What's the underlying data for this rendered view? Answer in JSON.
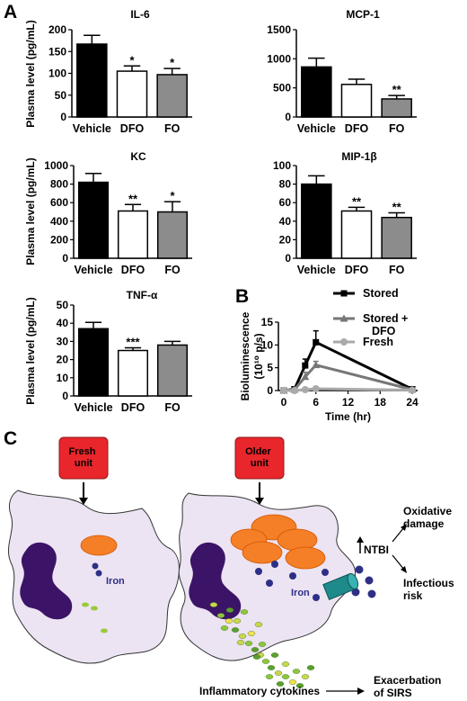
{
  "panel_labels": {
    "a": "A",
    "b": "B",
    "c": "C"
  },
  "chart_data": [
    {
      "id": "il6",
      "type": "bar",
      "title": "IL-6",
      "ylabel": "Plasma level (pg/mL)",
      "categories": [
        "Vehicle",
        "DFO",
        "FO"
      ],
      "values": [
        167,
        105,
        97
      ],
      "errors": [
        20,
        12,
        14
      ],
      "significance": [
        "",
        "*",
        "*"
      ],
      "ylim": [
        0,
        200
      ],
      "yticks": [
        0,
        50,
        100,
        150,
        200
      ],
      "bar_fills": [
        "#000000",
        "#ffffff",
        "#8c8c8c"
      ]
    },
    {
      "id": "mcp1",
      "type": "bar",
      "title": "MCP-1",
      "ylabel": "",
      "categories": [
        "Vehicle",
        "DFO",
        "FO"
      ],
      "values": [
        860,
        560,
        310
      ],
      "errors": [
        150,
        90,
        60
      ],
      "significance": [
        "",
        "",
        "**"
      ],
      "ylim": [
        0,
        1500
      ],
      "yticks": [
        0,
        500,
        1000,
        1500
      ],
      "bar_fills": [
        "#000000",
        "#ffffff",
        "#8c8c8c"
      ]
    },
    {
      "id": "kc",
      "type": "bar",
      "title": "KC",
      "ylabel": "Plasma level (pg/mL)",
      "categories": [
        "Vehicle",
        "DFO",
        "FO"
      ],
      "values": [
        820,
        510,
        500
      ],
      "errors": [
        95,
        70,
        110
      ],
      "significance": [
        "",
        "**",
        "*"
      ],
      "ylim": [
        0,
        1000
      ],
      "yticks": [
        0,
        200,
        400,
        600,
        800,
        1000
      ],
      "bar_fills": [
        "#000000",
        "#ffffff",
        "#8c8c8c"
      ]
    },
    {
      "id": "mip1b",
      "type": "bar",
      "title": "MIP-1β",
      "ylabel": "",
      "categories": [
        "Vehicle",
        "DFO",
        "FO"
      ],
      "values": [
        80,
        51,
        44
      ],
      "errors": [
        9,
        4,
        5
      ],
      "significance": [
        "",
        "**",
        "**"
      ],
      "ylim": [
        0,
        100
      ],
      "yticks": [
        0,
        20,
        40,
        60,
        80,
        100
      ],
      "bar_fills": [
        "#000000",
        "#ffffff",
        "#8c8c8c"
      ]
    },
    {
      "id": "tnfa",
      "type": "bar",
      "title": "TNF-α",
      "ylabel": "Plasma level (pg/mL)",
      "categories": [
        "Vehicle",
        "DFO",
        "FO"
      ],
      "values": [
        37,
        25,
        28
      ],
      "errors": [
        3.5,
        1.5,
        2
      ],
      "significance": [
        "",
        "***",
        ""
      ],
      "ylim": [
        0,
        50
      ],
      "yticks": [
        0,
        10,
        20,
        30,
        40,
        50
      ],
      "bar_fills": [
        "#000000",
        "#ffffff",
        "#8c8c8c"
      ]
    },
    {
      "id": "biolum",
      "type": "line",
      "title": "",
      "xlabel": "Time (hr)",
      "ylabel_line1": "Bioluminescence",
      "ylabel_line2": "(10¹⁰ p/s)",
      "xlim": [
        -1,
        25
      ],
      "xticks": [
        0,
        6,
        12,
        18,
        24
      ],
      "ylim": [
        0,
        15
      ],
      "yticks": [
        0,
        5,
        10,
        15
      ],
      "legend_position": "top-right",
      "series": [
        {
          "name": "Stored",
          "color": "#000000",
          "marker": "square",
          "x": [
            0,
            2,
            4,
            6,
            24
          ],
          "y": [
            0,
            0.3,
            5.5,
            10.6,
            0.3
          ],
          "err": [
            0,
            0.3,
            1.4,
            2.5,
            0.1
          ]
        },
        {
          "name": "Stored + DFO",
          "color": "#777777",
          "marker": "triangle",
          "x": [
            0,
            2,
            4,
            6,
            24
          ],
          "y": [
            0,
            0.2,
            3.0,
            5.6,
            0.2
          ],
          "err": [
            0,
            0.2,
            1.0,
            0.8,
            0.1
          ]
        },
        {
          "name": "Fresh",
          "color": "#aaaaaa",
          "marker": "circle",
          "x": [
            0,
            2,
            4,
            6,
            24
          ],
          "y": [
            0,
            0,
            0.2,
            0.4,
            0.1
          ],
          "err": [
            0,
            0,
            0.1,
            0.1,
            0.05
          ]
        }
      ]
    }
  ],
  "diagram": {
    "fresh_unit_label": "Fresh\nunit",
    "older_unit_label": "Older\nunit",
    "iron_label_left": "Iron",
    "iron_label_right": "Iron",
    "ntbi_label": "NTBI",
    "oxidative_label": "Oxidative\ndamage",
    "infectious_label": "Infectious\nrisk",
    "cytokines_label": "Inflammatory cytokines",
    "sirs_label": "Exacerbation\nof SIRS",
    "colors": {
      "unit_box": "#e8262b",
      "cell": "#ece4f2",
      "nucleus": "#3b1467",
      "vesicle": "#f57f26",
      "iron": "#2e2f86",
      "channel": "#1e8a8a"
    }
  }
}
